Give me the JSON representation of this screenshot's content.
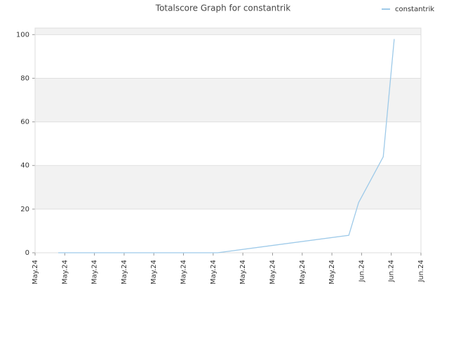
{
  "chart_data": {
    "type": "line",
    "title": "Totalscore Graph for constantrik",
    "x": [
      0.78,
      6.15,
      10.57,
      10.9,
      11.73,
      12.1
    ],
    "series": [
      {
        "name": "constantrik",
        "color": "#9ecae9",
        "values": [
          0,
          0,
          8,
          23,
          44,
          98
        ]
      }
    ],
    "xlim": [
      0,
      13
    ],
    "xticks": [
      {
        "value": 0,
        "label": "May.24"
      },
      {
        "value": 1,
        "label": "May.24"
      },
      {
        "value": 2,
        "label": "May.24"
      },
      {
        "value": 3,
        "label": "May.24"
      },
      {
        "value": 4,
        "label": "May.24"
      },
      {
        "value": 5,
        "label": "May.24"
      },
      {
        "value": 6,
        "label": "May.24"
      },
      {
        "value": 7,
        "label": "May.24"
      },
      {
        "value": 8,
        "label": "May.24"
      },
      {
        "value": 9,
        "label": "May.24"
      },
      {
        "value": 10,
        "label": "May.24"
      },
      {
        "value": 11,
        "label": "Jun.24"
      },
      {
        "value": 12,
        "label": "Jun.24"
      },
      {
        "value": 13,
        "label": "Jun.24"
      }
    ],
    "ylim": [
      0,
      103
    ],
    "yticks": [
      0,
      20,
      40,
      60,
      80,
      100
    ],
    "grid": true,
    "legend": "top-right"
  }
}
